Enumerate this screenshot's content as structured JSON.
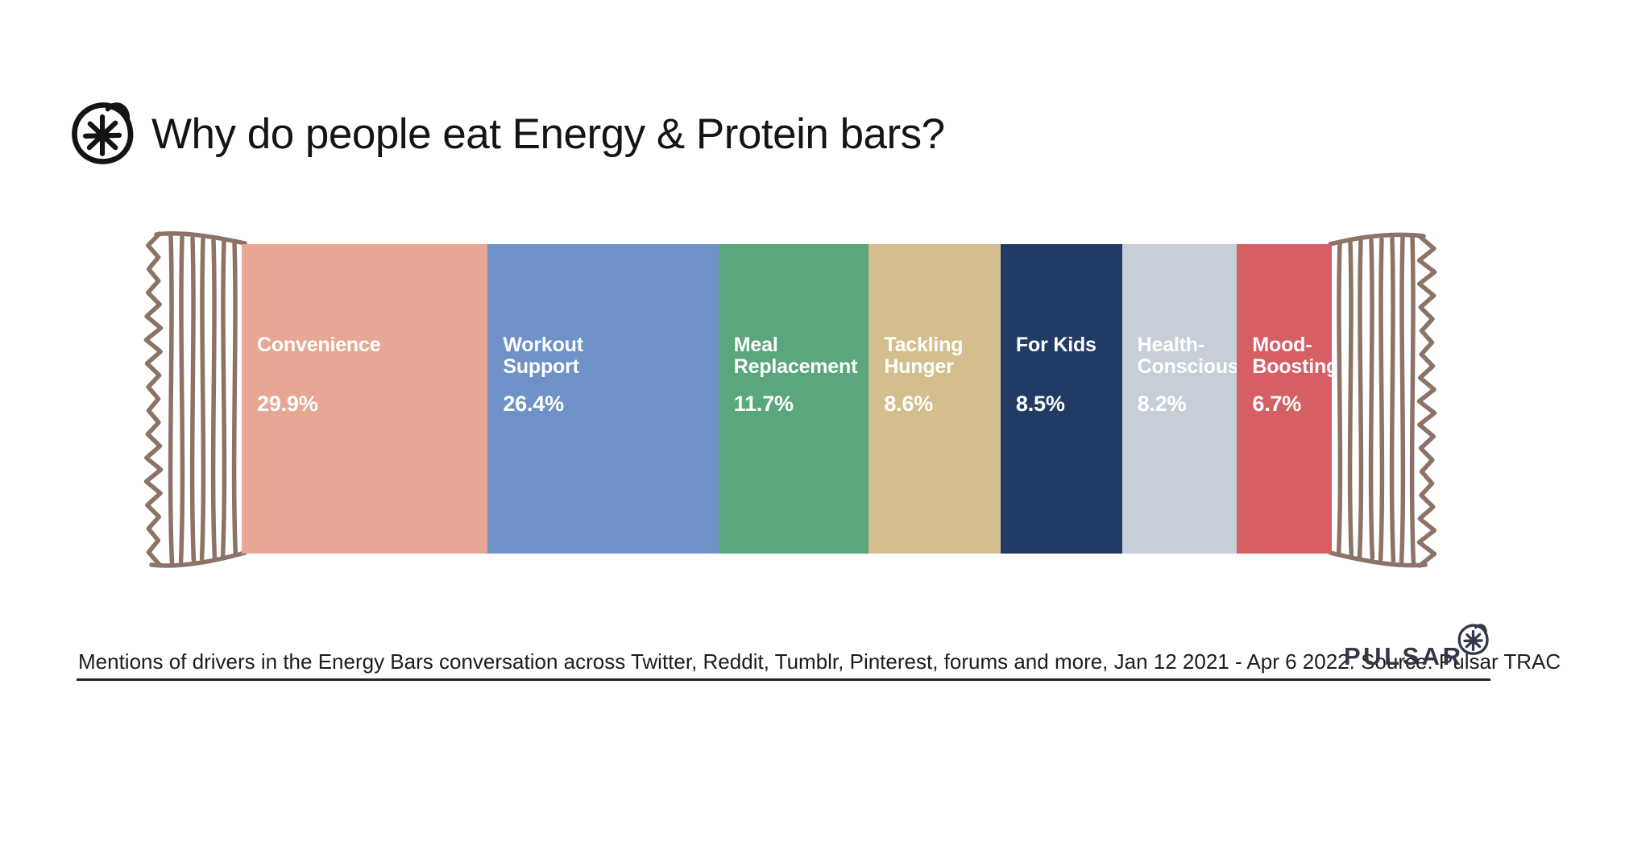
{
  "header": {
    "title": "Why do people eat Energy & Protein bars?"
  },
  "chart_data": {
    "type": "bar",
    "subtype": "horizontal-stacked-infographic",
    "title": "Why do people eat Energy & Protein bars?",
    "unit": "%",
    "legend": "none",
    "axes": "none",
    "segments": [
      {
        "label": "Convenience",
        "label_lines": [
          "Convenience"
        ],
        "value": 29.9,
        "value_label": "29.9%",
        "color": "#e8a695",
        "display_width_pct": 22.57
      },
      {
        "label": "Workout Support",
        "label_lines": [
          "Workout",
          "Support"
        ],
        "value": 26.4,
        "value_label": "26.4%",
        "color": "#6e91c8",
        "display_width_pct": 21.17
      },
      {
        "label": "Meal Replacement",
        "label_lines": [
          "Meal",
          "Replacement"
        ],
        "value": 11.7,
        "value_label": "11.7%",
        "color": "#5aa67d",
        "display_width_pct": 13.79
      },
      {
        "label": "Tackling Hunger",
        "label_lines": [
          "Tackling",
          "Hunger"
        ],
        "value": 8.6,
        "value_label": "8.6%",
        "color": "#d4be8e",
        "display_width_pct": 12.09
      },
      {
        "label": "For Kids",
        "label_lines": [
          "For Kids"
        ],
        "value": 8.5,
        "value_label": "8.5%",
        "color": "#223b65",
        "display_width_pct": 11.14
      },
      {
        "label": "Health-Conscious",
        "label_lines": [
          "Health-",
          "Conscious"
        ],
        "value": 8.2,
        "value_label": "8.2%",
        "color": "#c6cfd7",
        "display_width_pct": 10.55
      },
      {
        "label": "Mood-Boosting",
        "label_lines": [
          "Mood-",
          "Boosting"
        ],
        "value": 6.7,
        "value_label": "6.7%",
        "color": "#d55f63",
        "display_width_pct": 8.7
      }
    ]
  },
  "footer": {
    "caption": "Mentions of drivers in the Energy Bars conversation across Twitter, Reddit, Tumblr, Pinterest, forums and more, Jan 12 2021 - Apr 6 2022. Source: Pulsar TRAC",
    "brand": "PULSAR"
  },
  "icons": {
    "title_logo": "asterisk-circle",
    "brand_logo": "asterisk-circle",
    "wrapper_ends": "crinkled-wrapper-illustration"
  },
  "colors": {
    "background": "#ffffff",
    "title_text": "#141414",
    "segment_text": "#ffffff",
    "wrapper_outline": "#8b7467",
    "footer_text": "#1c1c1e",
    "footer_rule": "#23242e",
    "brand_text": "#343747"
  }
}
